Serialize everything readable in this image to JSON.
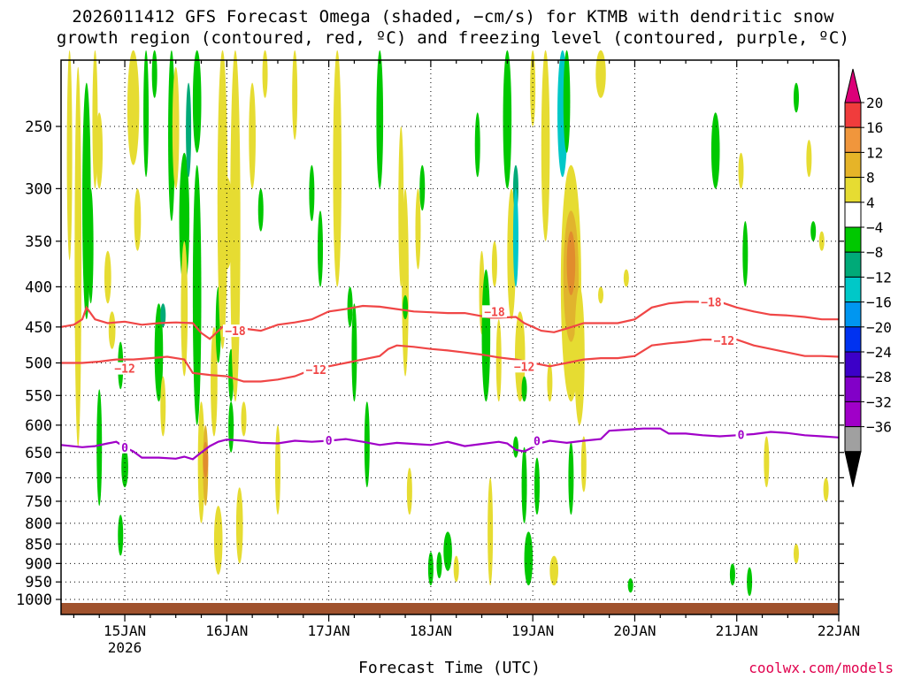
{
  "title_line1": "2026011412 GFS Forecast Omega (shaded, −cm/s) for KTMB with dendritic snow",
  "title_line2": "growth region (contoured, red, ºC) and freezing level (contoured, purple, ºC)",
  "xlabel": "Forecast Time (UTC)",
  "credit": "coolwx.com/models",
  "colors": {
    "fill_4_8": "#e6dc32",
    "fill_8_12": "#e1b42d",
    "fill_12_16": "#e18c2d",
    "fill_neg4_neg8": "#00c800",
    "fill_neg8_neg12": "#00aa78",
    "fill_neg12_neg16": "#00c8c8",
    "dgz_line": "#f04646",
    "freezing_line": "#a000c8",
    "ground": "#a0522d"
  },
  "chart_data": {
    "type": "heatmap",
    "title": "2026011412 GFS Forecast Omega (shaded, −cm/s) for KTMB with dendritic snow growth region (contoured, red, ºC) and freezing level (contoured, purple, ºC)",
    "xlabel": "Forecast Time (UTC)",
    "ylabel": "",
    "y_scale": "log-pressure (inverted)",
    "ylim_hPa": [
      1025,
      200
    ],
    "x_ticks": [
      {
        "label": "15JAN",
        "sub": "2026",
        "hour": 12
      },
      {
        "label": "16JAN",
        "sub": "",
        "hour": 36
      },
      {
        "label": "17JAN",
        "sub": "",
        "hour": 60
      },
      {
        "label": "18JAN",
        "sub": "",
        "hour": 84
      },
      {
        "label": "19JAN",
        "sub": "",
        "hour": 108
      },
      {
        "label": "20JAN",
        "sub": "",
        "hour": 132
      },
      {
        "label": "21JAN",
        "sub": "",
        "hour": 156
      },
      {
        "label": "22JAN",
        "sub": "",
        "hour": 180
      }
    ],
    "xlim_hours": [
      -3,
      180
    ],
    "y_ticks": [
      "250",
      "300",
      "350",
      "400",
      "450",
      "500",
      "550",
      "600",
      "650",
      "700",
      "750",
      "800",
      "850",
      "900",
      "950",
      "1000"
    ],
    "y_tick_values": [
      250,
      300,
      350,
      400,
      450,
      500,
      550,
      600,
      650,
      700,
      750,
      800,
      850,
      900,
      950,
      1000
    ],
    "colorbar_labels": [
      "20",
      "16",
      "12",
      "8",
      "4",
      "−4",
      "−8",
      "−12",
      "−16",
      "−20",
      "−24",
      "−28",
      "−32",
      "−36"
    ],
    "colorbar_colors": [
      "#dc0078",
      "#f03c3c",
      "#f0963c",
      "#e6b428",
      "#e6dc32",
      "#ffffff",
      "#00c800",
      "#00aa78",
      "#00c8c8",
      "#0096f0",
      "#0032f0",
      "#3c00c8",
      "#8200c8",
      "#a000c8",
      "#a0a0a0",
      "#000000"
    ],
    "contours": [
      {
        "name": "−18",
        "color": "#f04646",
        "labels": [
          {
            "text": "−18",
            "hour": 38,
            "p": 455
          },
          {
            "text": "−18",
            "hour": 99,
            "p": 430
          },
          {
            "text": "−18",
            "hour": 150,
            "p": 418
          }
        ],
        "points": [
          [
            -3,
            450
          ],
          [
            0,
            447
          ],
          [
            2,
            440
          ],
          [
            3,
            425
          ],
          [
            5,
            440
          ],
          [
            8,
            445
          ],
          [
            12,
            443
          ],
          [
            16,
            447
          ],
          [
            20,
            445
          ],
          [
            24,
            444
          ],
          [
            28,
            445
          ],
          [
            30,
            458
          ],
          [
            32,
            466
          ],
          [
            35,
            450
          ],
          [
            40,
            452
          ],
          [
            44,
            455
          ],
          [
            48,
            447
          ],
          [
            52,
            444
          ],
          [
            56,
            440
          ],
          [
            60,
            430
          ],
          [
            64,
            427
          ],
          [
            68,
            423
          ],
          [
            72,
            424
          ],
          [
            76,
            427
          ],
          [
            80,
            430
          ],
          [
            84,
            431
          ],
          [
            88,
            432
          ],
          [
            92,
            432
          ],
          [
            96,
            436
          ],
          [
            98,
            438
          ],
          [
            100,
            438
          ],
          [
            104,
            437
          ],
          [
            106,
            445
          ],
          [
            110,
            455
          ],
          [
            113,
            457
          ],
          [
            116,
            452
          ],
          [
            120,
            445
          ],
          [
            124,
            445
          ],
          [
            128,
            445
          ],
          [
            132,
            440
          ],
          [
            136,
            425
          ],
          [
            140,
            420
          ],
          [
            144,
            418
          ],
          [
            148,
            418
          ],
          [
            152,
            418
          ],
          [
            156,
            425
          ],
          [
            160,
            430
          ],
          [
            164,
            434
          ],
          [
            168,
            435
          ],
          [
            172,
            437
          ],
          [
            176,
            440
          ],
          [
            180,
            440
          ]
        ]
      },
      {
        "name": "−12",
        "color": "#f04646",
        "labels": [
          {
            "text": "−12",
            "hour": 12,
            "p": 508
          },
          {
            "text": "−12",
            "hour": 57,
            "p": 510
          },
          {
            "text": "−12",
            "hour": 106,
            "p": 505
          },
          {
            "text": "−12",
            "hour": 153,
            "p": 468
          }
        ],
        "points": [
          [
            -3,
            500
          ],
          [
            2,
            500
          ],
          [
            6,
            498
          ],
          [
            10,
            495
          ],
          [
            14,
            495
          ],
          [
            18,
            493
          ],
          [
            22,
            491
          ],
          [
            26,
            495
          ],
          [
            28,
            515
          ],
          [
            32,
            518
          ],
          [
            36,
            520
          ],
          [
            40,
            528
          ],
          [
            44,
            528
          ],
          [
            48,
            525
          ],
          [
            52,
            520
          ],
          [
            56,
            510
          ],
          [
            60,
            505
          ],
          [
            64,
            500
          ],
          [
            68,
            495
          ],
          [
            72,
            490
          ],
          [
            74,
            480
          ],
          [
            76,
            475
          ],
          [
            80,
            477
          ],
          [
            84,
            480
          ],
          [
            88,
            482
          ],
          [
            92,
            485
          ],
          [
            96,
            488
          ],
          [
            100,
            492
          ],
          [
            104,
            495
          ],
          [
            108,
            500
          ],
          [
            112,
            505
          ],
          [
            116,
            500
          ],
          [
            120,
            495
          ],
          [
            124,
            493
          ],
          [
            128,
            493
          ],
          [
            132,
            490
          ],
          [
            136,
            475
          ],
          [
            140,
            472
          ],
          [
            144,
            470
          ],
          [
            148,
            467
          ],
          [
            152,
            467
          ],
          [
            156,
            467
          ],
          [
            160,
            475
          ],
          [
            164,
            480
          ],
          [
            168,
            485
          ],
          [
            172,
            490
          ],
          [
            176,
            490
          ],
          [
            180,
            491
          ]
        ]
      },
      {
        "name": "0",
        "color": "#a000c8",
        "labels": [
          {
            "text": "0",
            "hour": 12,
            "p": 640
          },
          {
            "text": "0",
            "hour": 60,
            "p": 627
          },
          {
            "text": "0",
            "hour": 109,
            "p": 628
          },
          {
            "text": "0",
            "hour": 157,
            "p": 617
          }
        ],
        "points": [
          [
            -3,
            636
          ],
          [
            2,
            640
          ],
          [
            5,
            638
          ],
          [
            8,
            633
          ],
          [
            10,
            630
          ],
          [
            12,
            640
          ],
          [
            14,
            648
          ],
          [
            16,
            660
          ],
          [
            20,
            660
          ],
          [
            24,
            662
          ],
          [
            26,
            658
          ],
          [
            28,
            663
          ],
          [
            30,
            650
          ],
          [
            32,
            638
          ],
          [
            34,
            630
          ],
          [
            36,
            626
          ],
          [
            40,
            628
          ],
          [
            44,
            632
          ],
          [
            48,
            633
          ],
          [
            52,
            628
          ],
          [
            56,
            630
          ],
          [
            60,
            628
          ],
          [
            64,
            625
          ],
          [
            68,
            630
          ],
          [
            72,
            636
          ],
          [
            76,
            632
          ],
          [
            80,
            634
          ],
          [
            84,
            636
          ],
          [
            88,
            630
          ],
          [
            92,
            638
          ],
          [
            96,
            634
          ],
          [
            100,
            630
          ],
          [
            102,
            633
          ],
          [
            104,
            645
          ],
          [
            106,
            648
          ],
          [
            108,
            640
          ],
          [
            110,
            632
          ],
          [
            112,
            628
          ],
          [
            116,
            632
          ],
          [
            120,
            628
          ],
          [
            124,
            625
          ],
          [
            126,
            610
          ],
          [
            130,
            608
          ],
          [
            134,
            606
          ],
          [
            138,
            606
          ],
          [
            140,
            615
          ],
          [
            144,
            615
          ],
          [
            148,
            618
          ],
          [
            152,
            620
          ],
          [
            156,
            618
          ],
          [
            160,
            616
          ],
          [
            164,
            612
          ],
          [
            168,
            614
          ],
          [
            172,
            618
          ],
          [
            176,
            620
          ],
          [
            180,
            622
          ]
        ]
      }
    ]
  }
}
